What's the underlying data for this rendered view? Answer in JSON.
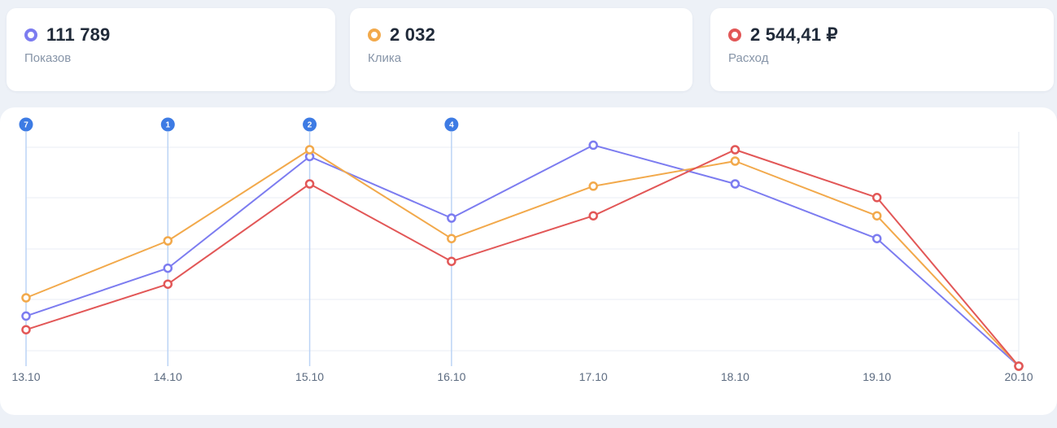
{
  "cards": [
    {
      "key": "impressions",
      "value": "111 789",
      "label": "Показов",
      "color": "#7c7cf0"
    },
    {
      "key": "clicks",
      "value": "2 032",
      "label": "Клика",
      "color": "#f2a94b"
    },
    {
      "key": "cost",
      "value": "2 544,41 ₽",
      "label": "Расход",
      "color": "#e25757"
    }
  ],
  "chart_data": {
    "type": "line",
    "title": "",
    "xlabel": "",
    "ylabel": "",
    "x": [
      "13.10",
      "14.10",
      "15.10",
      "16.10",
      "17.10",
      "18.10",
      "19.10",
      "20.10"
    ],
    "ylim": [
      0,
      100
    ],
    "grid": true,
    "legend": "none",
    "series": [
      {
        "key": "impressions",
        "name": "Показов",
        "color": "#7c7cf0",
        "values": [
          22,
          43,
          92,
          65,
          97,
          80,
          56,
          0
        ]
      },
      {
        "key": "clicks",
        "name": "Клика",
        "color": "#f2a94b",
        "values": [
          30,
          55,
          95,
          56,
          79,
          90,
          66,
          0
        ]
      },
      {
        "key": "cost",
        "name": "Расход",
        "color": "#e25757",
        "values": [
          16,
          36,
          80,
          46,
          66,
          95,
          74,
          0
        ]
      }
    ],
    "annotations": [
      {
        "x": "13.10",
        "label": "7"
      },
      {
        "x": "14.10",
        "label": "1"
      },
      {
        "x": "15.10",
        "label": "2"
      },
      {
        "x": "16.10",
        "label": "4"
      }
    ],
    "annotation_color": "#3d7be4",
    "annotation_line_color": "#bcd4f5"
  },
  "colors": {
    "background": "#edf1f7",
    "panel": "#ffffff",
    "grid": "#e9eef5",
    "axis_line": "#e3e9f2",
    "axis_label": "#5c6b80"
  }
}
